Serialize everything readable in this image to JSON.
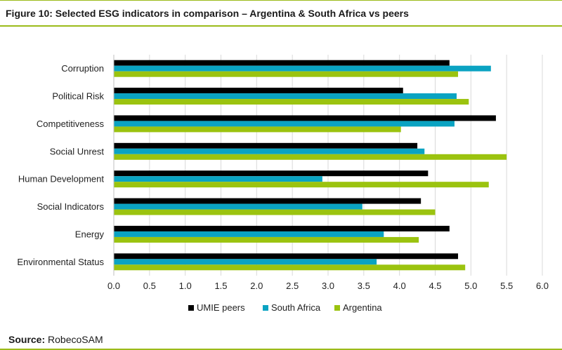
{
  "header": {
    "title": "Figure 10: Selected ESG indicators in comparison – Argentina & South Africa vs peers"
  },
  "footer": {
    "source_label": "Source:",
    "source_value": "RobecoSAM"
  },
  "colors": {
    "accent_rule": "#9bbb1a"
  },
  "chart_data": {
    "type": "bar",
    "orientation": "horizontal",
    "title": "",
    "xlabel": "",
    "ylabel": "",
    "categories": [
      "Corruption",
      "Political Risk",
      "Competitiveness",
      "Social Unrest",
      "Human Development",
      "Social Indicators",
      "Energy",
      "Environmental Status"
    ],
    "series": [
      {
        "name": "UMIE peers",
        "color": "#000000",
        "values": [
          4.7,
          4.05,
          5.35,
          4.25,
          4.4,
          4.3,
          4.7,
          4.82
        ]
      },
      {
        "name": "South Africa",
        "color": "#0aa3c2",
        "values": [
          5.28,
          4.8,
          4.77,
          4.35,
          2.92,
          3.48,
          3.78,
          3.68
        ]
      },
      {
        "name": "Argentina",
        "color": "#9bc30f",
        "values": [
          4.82,
          4.97,
          4.02,
          5.5,
          5.25,
          4.5,
          4.27,
          4.92
        ]
      }
    ],
    "xlim": [
      0,
      6
    ],
    "ticks": [
      "0.0",
      "0.5",
      "1.0",
      "1.5",
      "2.0",
      "2.5",
      "3.0",
      "3.5",
      "4.0",
      "4.5",
      "5.0",
      "5.5",
      "6.0"
    ],
    "grid": true,
    "legend_position": "bottom"
  }
}
